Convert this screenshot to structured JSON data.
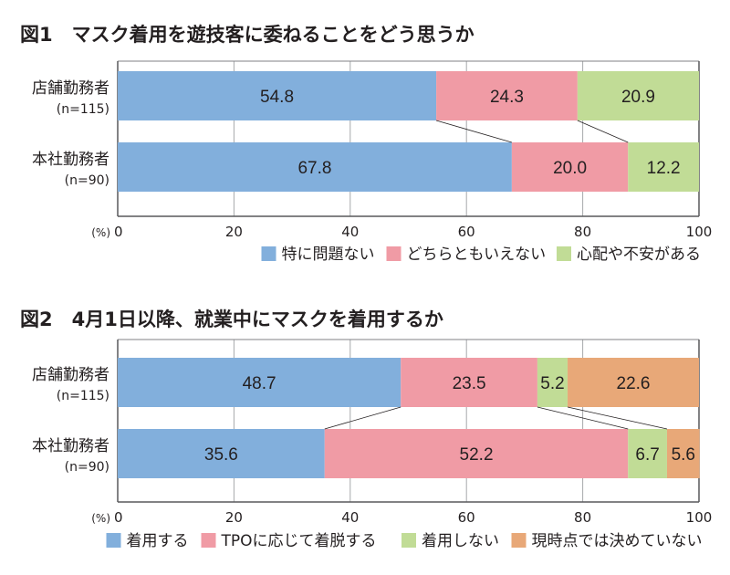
{
  "chart_data": [
    {
      "type": "bar",
      "orientation": "horizontal",
      "stacked": true,
      "title": "図1　マスク着用を遊技客に委ねることをどう思うか",
      "categories": [
        "店舗勤務者",
        "本社勤務者"
      ],
      "category_notes": [
        "(n=115)",
        "(n=90)"
      ],
      "series": [
        {
          "name": "特に問題ない",
          "color": "#82afdc",
          "values": [
            54.8,
            67.8
          ]
        },
        {
          "name": "どちらともいえない",
          "color": "#f09ba5",
          "values": [
            24.3,
            20.0
          ]
        },
        {
          "name": "心配や不安がある",
          "color": "#c1dc96",
          "values": [
            20.9,
            12.2
          ]
        }
      ],
      "xlim": [
        0,
        100
      ],
      "xticks": [
        "0",
        "20",
        "40",
        "60",
        "80",
        "100"
      ],
      "xunit": "(%)",
      "grid": true,
      "legend": "bottom-right",
      "connector_lines": true
    },
    {
      "type": "bar",
      "orientation": "horizontal",
      "stacked": true,
      "title": "図2　4月1日以降、就業中にマスクを着用するか",
      "categories": [
        "店舗勤務者",
        "本社勤務者"
      ],
      "category_notes": [
        "(n=115)",
        "(n=90)"
      ],
      "series": [
        {
          "name": "着用する",
          "color": "#82afdc",
          "values": [
            48.7,
            35.6
          ]
        },
        {
          "name": "TPOに応じて着脱する",
          "color": "#f09ba5",
          "values": [
            23.5,
            52.2
          ]
        },
        {
          "name": "着用しない",
          "color": "#c1dc96",
          "values": [
            5.2,
            6.7
          ]
        },
        {
          "name": "現時点では決めていない",
          "color": "#e8a878",
          "values": [
            22.6,
            5.6
          ]
        }
      ],
      "xlim": [
        0,
        100
      ],
      "xticks": [
        "0",
        "20",
        "40",
        "60",
        "80",
        "100"
      ],
      "xunit": "(%)",
      "grid": true,
      "legend": "bottom",
      "connector_lines": true
    }
  ]
}
